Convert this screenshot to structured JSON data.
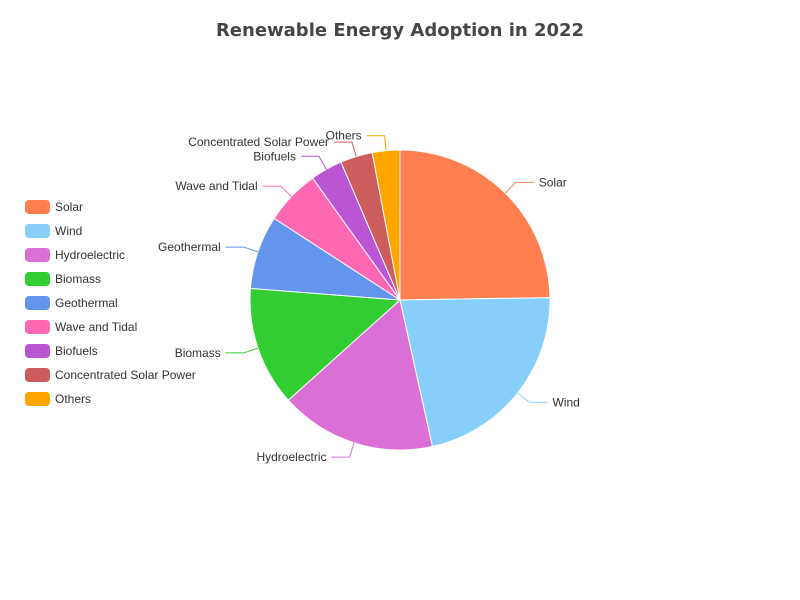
{
  "chart_data": {
    "type": "pie",
    "title": "Renewable Energy Adoption in 2022",
    "legend_position": "left",
    "slices": [
      {
        "name": "Solar",
        "value": 25,
        "color": "#ff7f50"
      },
      {
        "name": "Wind",
        "value": 22,
        "color": "#87cefa"
      },
      {
        "name": "Hydroelectric",
        "value": 17,
        "color": "#da70d6"
      },
      {
        "name": "Biomass",
        "value": 13,
        "color": "#32cd32"
      },
      {
        "name": "Geothermal",
        "value": 8,
        "color": "#6495ed"
      },
      {
        "name": "Wave and Tidal",
        "value": 6,
        "color": "#ff69b4"
      },
      {
        "name": "Biofuels",
        "value": 3.5,
        "color": "#ba55d3"
      },
      {
        "name": "Concentrated Solar Power",
        "value": 3.5,
        "color": "#cd5c5c"
      },
      {
        "name": "Others",
        "value": 3,
        "color": "#ffa500"
      }
    ]
  }
}
